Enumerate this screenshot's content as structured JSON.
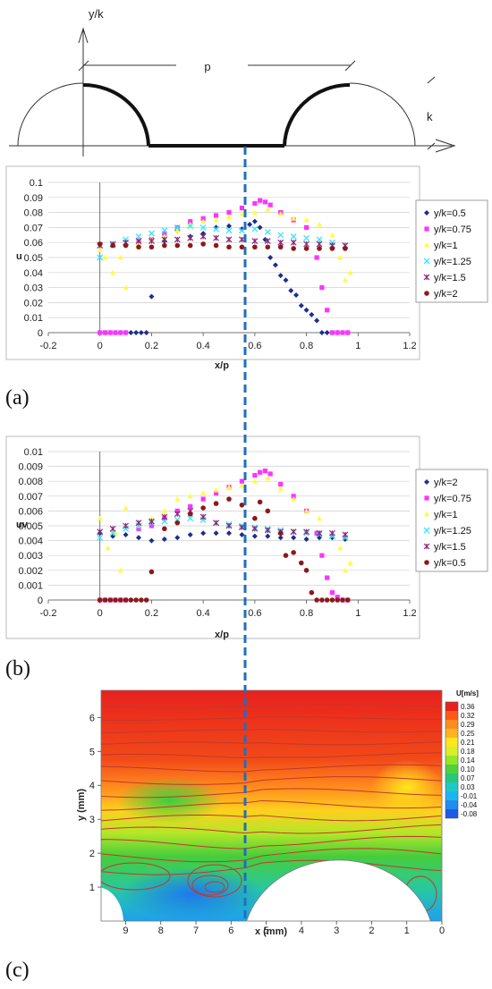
{
  "schematic": {
    "y_axis_label": "y/k",
    "pitch_label": "p",
    "height_label": "k"
  },
  "panel_labels": [
    "(a)",
    "(b)",
    "(c)"
  ],
  "legend_a": [
    "y/k=0.5",
    "y/k=0.75",
    "y/k=1",
    "y/k=1.25",
    "y/k=1.5",
    "y/k=2"
  ],
  "legend_b": [
    "y/k=2",
    "y/k=0.75",
    "y/k=1",
    "y/k=1.25",
    "y/k=1.5",
    "y/k=0.5"
  ],
  "colors": {
    "navy": "#1f2d8a",
    "magenta": "#ff33ff",
    "yellow": "#ffff33",
    "cyan": "#33e6ff",
    "purple": "#8a2a7a",
    "maroon": "#8b1a1a",
    "dashed_line": "#1f6fbf",
    "streamline": "#c0392b"
  },
  "chart_data": [
    {
      "type": "scatter",
      "panel": "(a)",
      "xlabel": "x/p",
      "ylabel": "u",
      "xlim": [
        -0.2,
        1.2
      ],
      "ylim": [
        0,
        0.1
      ],
      "xticks": [
        "-0.2",
        "0",
        "0.2",
        "0.4",
        "0.6",
        "0.8",
        "1",
        "1.2"
      ],
      "yticks": [
        "0",
        "0.01",
        "0.02",
        "0.03",
        "0.04",
        "0.05",
        "0.06",
        "0.07",
        "0.08",
        "0.09",
        "0.1"
      ],
      "legend_position": "right",
      "series": [
        {
          "name": "y/k=0.5",
          "marker": "diamond",
          "color": "navy",
          "x": [
            0.0,
            0.02,
            0.04,
            0.06,
            0.08,
            0.1,
            0.12,
            0.14,
            0.16,
            0.18,
            0.2,
            0.25,
            0.3,
            0.35,
            0.4,
            0.45,
            0.5,
            0.55,
            0.58,
            0.6,
            0.62,
            0.64,
            0.66,
            0.68,
            0.7,
            0.72,
            0.74,
            0.76,
            0.78,
            0.8,
            0.82,
            0.84,
            0.86,
            0.88,
            0.9,
            0.92,
            0.94,
            0.96
          ],
          "y": [
            0.0,
            0.0,
            0.0,
            0.0,
            0.0,
            0.0,
            0.0,
            0.0,
            0.0,
            0.0,
            0.024,
            0.061,
            0.068,
            0.064,
            0.066,
            0.07,
            0.071,
            0.069,
            0.072,
            0.074,
            0.07,
            0.062,
            0.05,
            0.045,
            0.038,
            0.035,
            0.028,
            0.025,
            0.018,
            0.015,
            0.012,
            0.008,
            0.0,
            0.0,
            0.0,
            0.0,
            0.0,
            0.0
          ]
        },
        {
          "name": "y/k=0.75",
          "marker": "square",
          "color": "magenta",
          "x": [
            0.0,
            0.02,
            0.04,
            0.06,
            0.08,
            0.1,
            0.15,
            0.2,
            0.25,
            0.3,
            0.35,
            0.4,
            0.45,
            0.5,
            0.55,
            0.6,
            0.62,
            0.64,
            0.66,
            0.7,
            0.75,
            0.8,
            0.84,
            0.86,
            0.88,
            0.9,
            0.92,
            0.94,
            0.96
          ],
          "y": [
            0.0,
            0.0,
            0.0,
            0.0,
            0.0,
            0.0,
            0.06,
            0.062,
            0.066,
            0.07,
            0.074,
            0.076,
            0.078,
            0.08,
            0.083,
            0.086,
            0.088,
            0.087,
            0.085,
            0.08,
            0.075,
            0.07,
            0.05,
            0.03,
            0.015,
            0.0,
            0.0,
            0.0,
            0.0
          ]
        },
        {
          "name": "y/k=1",
          "marker": "triangle",
          "color": "yellow",
          "x": [
            0.0,
            0.02,
            0.05,
            0.08,
            0.1,
            0.15,
            0.2,
            0.25,
            0.3,
            0.35,
            0.4,
            0.45,
            0.5,
            0.55,
            0.6,
            0.65,
            0.7,
            0.75,
            0.8,
            0.85,
            0.9,
            0.93,
            0.95,
            0.97
          ],
          "y": [
            0.055,
            0.05,
            0.04,
            0.05,
            0.03,
            0.06,
            0.062,
            0.064,
            0.068,
            0.072,
            0.074,
            0.075,
            0.077,
            0.079,
            0.08,
            0.082,
            0.079,
            0.076,
            0.075,
            0.072,
            0.065,
            0.05,
            0.035,
            0.04
          ]
        },
        {
          "name": "y/k=1.25",
          "marker": "x",
          "color": "cyan",
          "x": [
            0.0,
            0.05,
            0.1,
            0.15,
            0.2,
            0.25,
            0.3,
            0.35,
            0.4,
            0.45,
            0.5,
            0.55,
            0.6,
            0.65,
            0.7,
            0.75,
            0.8,
            0.85,
            0.9,
            0.95
          ],
          "y": [
            0.05,
            0.058,
            0.062,
            0.064,
            0.066,
            0.068,
            0.07,
            0.071,
            0.07,
            0.069,
            0.068,
            0.068,
            0.069,
            0.067,
            0.065,
            0.064,
            0.063,
            0.062,
            0.06,
            0.058
          ]
        },
        {
          "name": "y/k=1.5",
          "marker": "star",
          "color": "purple",
          "x": [
            0.0,
            0.05,
            0.1,
            0.15,
            0.2,
            0.25,
            0.3,
            0.35,
            0.4,
            0.45,
            0.5,
            0.55,
            0.6,
            0.65,
            0.7,
            0.75,
            0.8,
            0.85,
            0.9,
            0.95
          ],
          "y": [
            0.058,
            0.059,
            0.06,
            0.061,
            0.061,
            0.062,
            0.062,
            0.063,
            0.064,
            0.063,
            0.062,
            0.062,
            0.061,
            0.061,
            0.06,
            0.06,
            0.059,
            0.059,
            0.058,
            0.058
          ]
        },
        {
          "name": "y/k=2",
          "marker": "circle",
          "color": "maroon",
          "x": [
            0.0,
            0.05,
            0.1,
            0.15,
            0.2,
            0.25,
            0.3,
            0.35,
            0.4,
            0.45,
            0.5,
            0.55,
            0.6,
            0.65,
            0.7,
            0.75,
            0.8,
            0.85,
            0.9,
            0.95
          ],
          "y": [
            0.059,
            0.058,
            0.058,
            0.057,
            0.057,
            0.058,
            0.058,
            0.058,
            0.059,
            0.058,
            0.057,
            0.057,
            0.057,
            0.057,
            0.057,
            0.056,
            0.056,
            0.056,
            0.056,
            0.056
          ]
        }
      ]
    },
    {
      "type": "scatter",
      "panel": "(b)",
      "xlabel": "x/p",
      "ylabel": "uv",
      "xlim": [
        -0.2,
        1.2
      ],
      "ylim": [
        0,
        0.01
      ],
      "xticks": [
        "-0.2",
        "0",
        "0.2",
        "0.4",
        "0.6",
        "0.8",
        "1",
        "1.2"
      ],
      "yticks": [
        "0",
        "0.001",
        "0.002",
        "0.003",
        "0.004",
        "0.005",
        "0.006",
        "0.007",
        "0.008",
        "0.009",
        "0.01"
      ],
      "legend_position": "right",
      "series": [
        {
          "name": "y/k=2",
          "marker": "diamond",
          "color": "navy",
          "x": [
            0.0,
            0.05,
            0.1,
            0.15,
            0.2,
            0.25,
            0.3,
            0.35,
            0.4,
            0.45,
            0.5,
            0.55,
            0.6,
            0.65,
            0.7,
            0.75,
            0.8,
            0.85,
            0.9,
            0.95
          ],
          "y": [
            0.0045,
            0.0043,
            0.0044,
            0.0042,
            0.004,
            0.0041,
            0.0042,
            0.0044,
            0.0045,
            0.0045,
            0.0045,
            0.0044,
            0.0043,
            0.0043,
            0.0042,
            0.0042,
            0.0041,
            0.0042,
            0.0042,
            0.0041
          ]
        },
        {
          "name": "y/k=0.75",
          "marker": "square",
          "color": "magenta",
          "x": [
            0.0,
            0.02,
            0.04,
            0.06,
            0.08,
            0.1,
            0.15,
            0.2,
            0.25,
            0.3,
            0.35,
            0.4,
            0.45,
            0.5,
            0.55,
            0.6,
            0.62,
            0.64,
            0.66,
            0.7,
            0.75,
            0.8,
            0.84,
            0.86,
            0.88,
            0.9,
            0.92,
            0.94,
            0.96
          ],
          "y": [
            0.0,
            0.0,
            0.0,
            0.0,
            0.0,
            0.0,
            0.0048,
            0.005,
            0.0055,
            0.006,
            0.0063,
            0.0068,
            0.0072,
            0.0076,
            0.008,
            0.0084,
            0.0086,
            0.0087,
            0.0085,
            0.0078,
            0.007,
            0.006,
            0.0045,
            0.003,
            0.0015,
            0.0005,
            0.0002,
            0.0,
            0.0
          ]
        },
        {
          "name": "y/k=1",
          "marker": "triangle",
          "color": "yellow",
          "x": [
            0.0,
            0.03,
            0.06,
            0.08,
            0.1,
            0.15,
            0.2,
            0.25,
            0.3,
            0.35,
            0.4,
            0.45,
            0.5,
            0.55,
            0.6,
            0.65,
            0.7,
            0.75,
            0.8,
            0.85,
            0.9,
            0.93,
            0.95,
            0.97
          ],
          "y": [
            0.0055,
            0.0035,
            0.0045,
            0.002,
            0.0062,
            0.005,
            0.0055,
            0.006,
            0.0068,
            0.007,
            0.0072,
            0.0074,
            0.0076,
            0.0077,
            0.008,
            0.0082,
            0.0075,
            0.0068,
            0.006,
            0.0055,
            0.0045,
            0.0035,
            0.002,
            0.0025
          ]
        },
        {
          "name": "y/k=1.25",
          "marker": "x",
          "color": "cyan",
          "x": [
            0.0,
            0.05,
            0.1,
            0.15,
            0.2,
            0.25,
            0.3,
            0.35,
            0.4,
            0.45,
            0.5,
            0.55,
            0.6,
            0.65,
            0.7,
            0.75,
            0.8,
            0.85,
            0.9,
            0.95
          ],
          "y": [
            0.0042,
            0.0045,
            0.0048,
            0.005,
            0.0052,
            0.0053,
            0.0054,
            0.0055,
            0.0054,
            0.0052,
            0.0051,
            0.005,
            0.0049,
            0.0048,
            0.0047,
            0.0046,
            0.0045,
            0.0044,
            0.0043,
            0.0042
          ]
        },
        {
          "name": "y/k=1.5",
          "marker": "star",
          "color": "purple",
          "x": [
            0.0,
            0.05,
            0.1,
            0.15,
            0.2,
            0.25,
            0.3,
            0.35,
            0.4,
            0.45,
            0.5,
            0.55,
            0.6,
            0.65,
            0.7,
            0.75,
            0.8,
            0.85,
            0.9,
            0.95
          ],
          "y": [
            0.0046,
            0.0048,
            0.005,
            0.0052,
            0.0053,
            0.0056,
            0.0058,
            0.006,
            0.0056,
            0.0052,
            0.005,
            0.0049,
            0.0048,
            0.0047,
            0.0046,
            0.0046,
            0.0046,
            0.0045,
            0.0045,
            0.0044
          ]
        },
        {
          "name": "y/k=0.5",
          "marker": "circle",
          "color": "maroon",
          "x": [
            0.0,
            0.02,
            0.04,
            0.06,
            0.08,
            0.1,
            0.12,
            0.14,
            0.16,
            0.18,
            0.2,
            0.25,
            0.3,
            0.35,
            0.4,
            0.45,
            0.5,
            0.55,
            0.6,
            0.62,
            0.65,
            0.7,
            0.72,
            0.75,
            0.78,
            0.8,
            0.82,
            0.84,
            0.86,
            0.88,
            0.9,
            0.92,
            0.94,
            0.96
          ],
          "y": [
            0.0,
            0.0,
            0.0,
            0.0,
            0.0,
            0.0,
            0.0,
            0.0,
            0.0,
            0.0,
            0.0019,
            0.0048,
            0.0052,
            0.0058,
            0.0062,
            0.0065,
            0.0068,
            0.0064,
            0.0055,
            0.0066,
            0.006,
            0.0045,
            0.003,
            0.0032,
            0.0025,
            0.002,
            0.0005,
            0.0,
            0.0,
            0.0,
            0.0,
            0.0,
            0.0,
            0.0
          ]
        }
      ]
    },
    {
      "type": "heatmap",
      "panel": "(c)",
      "xlabel": "x (mm)",
      "ylabel": "y (mm)",
      "xlim": [
        9.7,
        0
      ],
      "ylim": [
        0,
        6.8
      ],
      "xticks": [
        "9",
        "8",
        "7",
        "6",
        "5",
        "4",
        "3",
        "2",
        "1",
        "0"
      ],
      "yticks": [
        "1",
        "2",
        "3",
        "4",
        "5",
        "6"
      ],
      "colorbar_title": "U[m/s]",
      "colorbar_ticks": [
        "0.36",
        "0.32",
        "0.29",
        "0.25",
        "0.21",
        "0.18",
        "0.14",
        "0.10",
        "0.07",
        "0.03",
        "-0.01",
        "-0.04",
        "-0.08"
      ],
      "colorbar_colors": [
        "#e8211e",
        "#ff5a14",
        "#ff8c1e",
        "#ffb41e",
        "#ffe61e",
        "#d8f028",
        "#96e628",
        "#50d23c",
        "#28c87a",
        "#1ec8c8",
        "#1eb4f0",
        "#1e8cf0",
        "#1e5ae6"
      ]
    }
  ]
}
